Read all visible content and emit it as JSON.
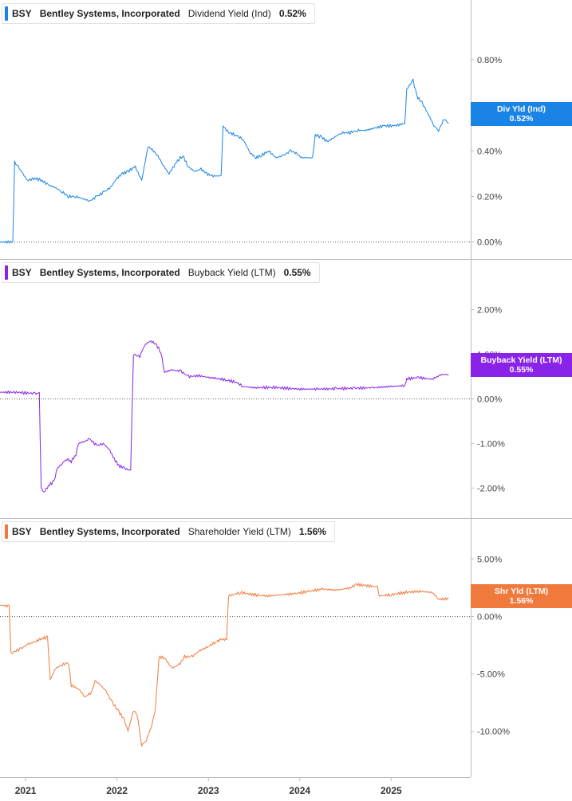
{
  "colors": {
    "div": "#1a84e6",
    "buyback": "#8a23e8",
    "shr": "#f07a3c",
    "axis": "#bbbbbb",
    "zero": "#555555"
  },
  "chart_data": [
    {
      "type": "line",
      "legend": {
        "ticker": "BSY",
        "company": "Bentley Systems, Incorporated",
        "metric": "Dividend Yield (Ind)",
        "value": "0.52%"
      },
      "tag": {
        "label": "Div Yld (Ind)",
        "value": "0.52%"
      },
      "ylim": [
        -0.05,
        0.95
      ],
      "y_ticks": [
        0.8,
        0.6,
        0.4,
        0.2,
        0.0
      ],
      "y_tick_labels": [
        "0.80%",
        "0.60%",
        "0.40%",
        "0.20%",
        "0.00%"
      ],
      "series": [
        {
          "color_key": "div",
          "points": [
            [
              2020.72,
              0.0
            ],
            [
              2020.86,
              0.0
            ],
            [
              2020.88,
              0.35
            ],
            [
              2020.92,
              0.33
            ],
            [
              2020.97,
              0.3
            ],
            [
              2021.02,
              0.27
            ],
            [
              2021.1,
              0.28
            ],
            [
              2021.18,
              0.27
            ],
            [
              2021.25,
              0.25
            ],
            [
              2021.32,
              0.24
            ],
            [
              2021.4,
              0.22
            ],
            [
              2021.47,
              0.2
            ],
            [
              2021.55,
              0.2
            ],
            [
              2021.63,
              0.19
            ],
            [
              2021.7,
              0.18
            ],
            [
              2021.78,
              0.2
            ],
            [
              2021.86,
              0.22
            ],
            [
              2021.93,
              0.24
            ],
            [
              2022.0,
              0.28
            ],
            [
              2022.06,
              0.3
            ],
            [
              2022.12,
              0.31
            ],
            [
              2022.2,
              0.33
            ],
            [
              2022.27,
              0.27
            ],
            [
              2022.34,
              0.42
            ],
            [
              2022.4,
              0.4
            ],
            [
              2022.46,
              0.37
            ],
            [
              2022.5,
              0.34
            ],
            [
              2022.57,
              0.3
            ],
            [
              2022.65,
              0.35
            ],
            [
              2022.72,
              0.38
            ],
            [
              2022.78,
              0.33
            ],
            [
              2022.85,
              0.31
            ],
            [
              2022.92,
              0.32
            ],
            [
              2022.98,
              0.3
            ],
            [
              2023.04,
              0.29
            ],
            [
              2023.14,
              0.29
            ],
            [
              2023.16,
              0.51
            ],
            [
              2023.22,
              0.48
            ],
            [
              2023.3,
              0.47
            ],
            [
              2023.38,
              0.45
            ],
            [
              2023.46,
              0.39
            ],
            [
              2023.52,
              0.37
            ],
            [
              2023.58,
              0.38
            ],
            [
              2023.66,
              0.4
            ],
            [
              2023.74,
              0.37
            ],
            [
              2023.82,
              0.38
            ],
            [
              2023.9,
              0.4
            ],
            [
              2023.96,
              0.39
            ],
            [
              2024.02,
              0.37
            ],
            [
              2024.14,
              0.37
            ],
            [
              2024.17,
              0.47
            ],
            [
              2024.24,
              0.46
            ],
            [
              2024.3,
              0.44
            ],
            [
              2024.38,
              0.46
            ],
            [
              2024.46,
              0.48
            ],
            [
              2024.55,
              0.48
            ],
            [
              2024.63,
              0.49
            ],
            [
              2024.72,
              0.49
            ],
            [
              2024.82,
              0.5
            ],
            [
              2024.92,
              0.51
            ],
            [
              2025.03,
              0.51
            ],
            [
              2025.15,
              0.52
            ],
            [
              2025.17,
              0.67
            ],
            [
              2025.24,
              0.71
            ],
            [
              2025.28,
              0.64
            ],
            [
              2025.34,
              0.61
            ],
            [
              2025.42,
              0.55
            ],
            [
              2025.47,
              0.51
            ],
            [
              2025.52,
              0.49
            ],
            [
              2025.58,
              0.54
            ],
            [
              2025.63,
              0.52
            ]
          ]
        }
      ]
    },
    {
      "type": "line",
      "legend": {
        "ticker": "BSY",
        "company": "Bentley Systems, Incorporated",
        "metric": "Buyback Yield (LTM)",
        "value": "0.55%"
      },
      "tag": {
        "label": "Buyback Yield (LTM)",
        "value": "0.55%"
      },
      "ylim": [
        -2.55,
        2.55
      ],
      "y_ticks": [
        2,
        1,
        0,
        -1,
        -2
      ],
      "y_tick_labels": [
        "2.00%",
        "1.00%",
        "0.00%",
        "-1.00%",
        "-2.00%"
      ],
      "series": [
        {
          "color_key": "buyback",
          "points": [
            [
              2020.72,
              0.15
            ],
            [
              2020.9,
              0.15
            ],
            [
              2021.1,
              0.12
            ],
            [
              2021.15,
              0.12
            ],
            [
              2021.17,
              -2.0
            ],
            [
              2021.2,
              -2.1
            ],
            [
              2021.25,
              -1.95
            ],
            [
              2021.31,
              -1.85
            ],
            [
              2021.35,
              -1.55
            ],
            [
              2021.4,
              -1.45
            ],
            [
              2021.45,
              -1.35
            ],
            [
              2021.5,
              -1.4
            ],
            [
              2021.55,
              -1.25
            ],
            [
              2021.58,
              -1.0
            ],
            [
              2021.65,
              -0.95
            ],
            [
              2021.7,
              -0.9
            ],
            [
              2021.78,
              -1.05
            ],
            [
              2021.85,
              -1.0
            ],
            [
              2021.92,
              -1.15
            ],
            [
              2021.97,
              -1.35
            ],
            [
              2022.02,
              -1.5
            ],
            [
              2022.08,
              -1.55
            ],
            [
              2022.12,
              -1.6
            ],
            [
              2022.15,
              -1.58
            ],
            [
              2022.18,
              1.0
            ],
            [
              2022.25,
              0.95
            ],
            [
              2022.3,
              1.2
            ],
            [
              2022.36,
              1.3
            ],
            [
              2022.42,
              1.25
            ],
            [
              2022.48,
              1.05
            ],
            [
              2022.52,
              0.6
            ],
            [
              2022.6,
              0.65
            ],
            [
              2022.7,
              0.62
            ],
            [
              2022.78,
              0.5
            ],
            [
              2022.9,
              0.52
            ],
            [
              2023.0,
              0.48
            ],
            [
              2023.1,
              0.46
            ],
            [
              2023.2,
              0.42
            ],
            [
              2023.3,
              0.38
            ],
            [
              2023.38,
              0.28
            ],
            [
              2023.5,
              0.25
            ],
            [
              2023.7,
              0.26
            ],
            [
              2023.85,
              0.24
            ],
            [
              2024.0,
              0.22
            ],
            [
              2024.2,
              0.22
            ],
            [
              2024.4,
              0.23
            ],
            [
              2024.6,
              0.24
            ],
            [
              2024.8,
              0.25
            ],
            [
              2025.0,
              0.28
            ],
            [
              2025.15,
              0.3
            ],
            [
              2025.17,
              0.45
            ],
            [
              2025.3,
              0.48
            ],
            [
              2025.45,
              0.44
            ],
            [
              2025.55,
              0.55
            ],
            [
              2025.63,
              0.55
            ]
          ]
        }
      ]
    },
    {
      "type": "line",
      "legend": {
        "ticker": "BSY",
        "company": "Bentley Systems, Incorporated",
        "metric": "Shareholder Yield (LTM)",
        "value": "1.56%"
      },
      "tag": {
        "label": "Shr Yld (LTM)",
        "value": "1.56%"
      },
      "ylim": [
        -13.5,
        6.5
      ],
      "y_ticks": [
        5,
        0,
        -5,
        -10
      ],
      "y_tick_labels": [
        "5.00%",
        "0.00%",
        "-5.00%",
        "-10.00%"
      ],
      "series": [
        {
          "color_key": "shr",
          "points": [
            [
              2020.72,
              1.0
            ],
            [
              2020.82,
              0.9
            ],
            [
              2020.84,
              -3.2
            ],
            [
              2020.95,
              -2.8
            ],
            [
              2021.03,
              -2.4
            ],
            [
              2021.1,
              -2.2
            ],
            [
              2021.18,
              -1.9
            ],
            [
              2021.24,
              -1.8
            ],
            [
              2021.27,
              -5.5
            ],
            [
              2021.33,
              -4.5
            ],
            [
              2021.4,
              -4.2
            ],
            [
              2021.47,
              -4.0
            ],
            [
              2021.5,
              -6.0
            ],
            [
              2021.58,
              -6.3
            ],
            [
              2021.65,
              -7.0
            ],
            [
              2021.72,
              -6.6
            ],
            [
              2021.76,
              -5.6
            ],
            [
              2021.8,
              -5.8
            ],
            [
              2021.88,
              -6.5
            ],
            [
              2021.95,
              -7.5
            ],
            [
              2022.02,
              -8.3
            ],
            [
              2022.08,
              -9.0
            ],
            [
              2022.12,
              -10.0
            ],
            [
              2022.18,
              -8.2
            ],
            [
              2022.22,
              -8.5
            ],
            [
              2022.27,
              -11.2
            ],
            [
              2022.32,
              -10.8
            ],
            [
              2022.38,
              -9.5
            ],
            [
              2022.42,
              -8.0
            ],
            [
              2022.46,
              -3.5
            ],
            [
              2022.52,
              -3.6
            ],
            [
              2022.6,
              -4.5
            ],
            [
              2022.68,
              -4.2
            ],
            [
              2022.74,
              -3.5
            ],
            [
              2022.82,
              -3.5
            ],
            [
              2022.9,
              -3.0
            ],
            [
              2023.0,
              -2.6
            ],
            [
              2023.08,
              -2.2
            ],
            [
              2023.14,
              -2.0
            ],
            [
              2023.2,
              -2.0
            ],
            [
              2023.22,
              1.8
            ],
            [
              2023.35,
              2.1
            ],
            [
              2023.5,
              1.9
            ],
            [
              2023.65,
              1.8
            ],
            [
              2023.8,
              1.9
            ],
            [
              2023.95,
              2.0
            ],
            [
              2024.1,
              2.2
            ],
            [
              2024.25,
              2.4
            ],
            [
              2024.4,
              2.3
            ],
            [
              2024.55,
              2.5
            ],
            [
              2024.62,
              2.8
            ],
            [
              2024.72,
              2.7
            ],
            [
              2024.85,
              2.6
            ],
            [
              2024.87,
              1.8
            ],
            [
              2025.0,
              1.9
            ],
            [
              2025.15,
              2.1
            ],
            [
              2025.3,
              2.2
            ],
            [
              2025.45,
              2.1
            ],
            [
              2025.52,
              1.5
            ],
            [
              2025.63,
              1.56
            ]
          ]
        }
      ]
    }
  ],
  "x_axis": {
    "ticks": [
      2021,
      2022,
      2023,
      2024,
      2025
    ],
    "tick_labels": [
      "2021",
      "2022",
      "2023",
      "2024",
      "2025"
    ],
    "xlim": [
      2020.72,
      2025.87
    ]
  }
}
